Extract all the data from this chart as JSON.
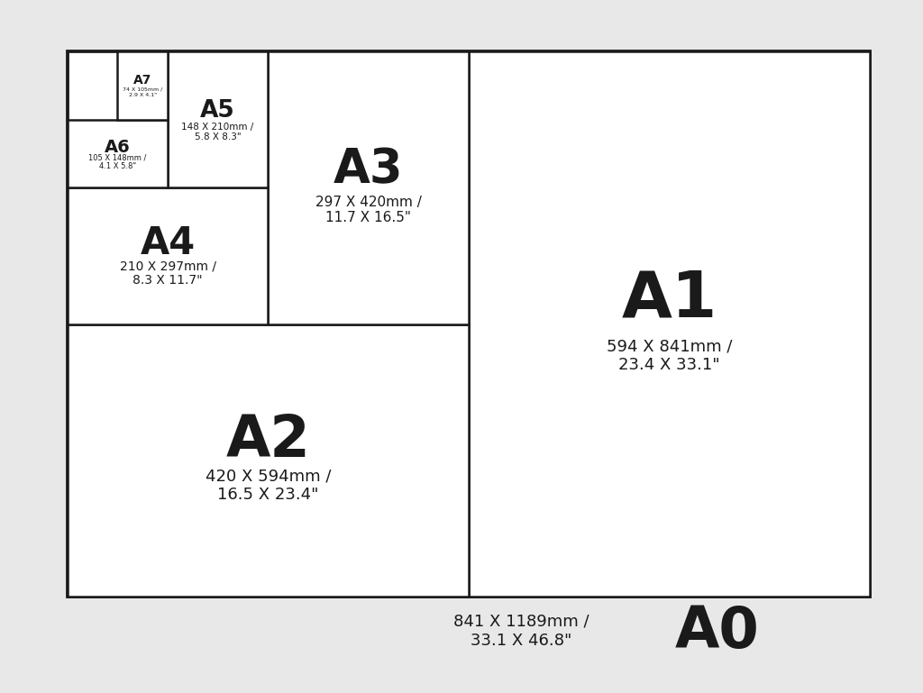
{
  "bg_color": "#e8e8e8",
  "box_color": "#ffffff",
  "line_color": "#1a1a1a",
  "text_color": "#1a1a1a",
  "sizes": {
    "A0": {
      "label": "A0",
      "mm": "841 X 1189mm /",
      "inch": "33.1 X 46.8\""
    },
    "A1": {
      "label": "A1",
      "mm": "594 X 841mm /",
      "inch": "23.4 X 33.1\""
    },
    "A2": {
      "label": "A2",
      "mm": "420 X 594mm /",
      "inch": "16.5 X 23.4\""
    },
    "A3": {
      "label": "A3",
      "mm": "297 X 420mm /",
      "inch": "11.7 X 16.5\""
    },
    "A4": {
      "label": "A4",
      "mm": "210 X 297mm /",
      "inch": "8.3 X 11.7\""
    },
    "A5": {
      "label": "A5",
      "mm": "148 X 210mm /",
      "inch": "5.8 X 8.3\""
    },
    "A6": {
      "label": "A6",
      "mm": "105 X 148mm /",
      "inch": "4.1 X 5.8\""
    },
    "A7": {
      "label": "A7",
      "mm": "74 X 105mm /",
      "inch": "2.9 X 4.1\""
    }
  }
}
